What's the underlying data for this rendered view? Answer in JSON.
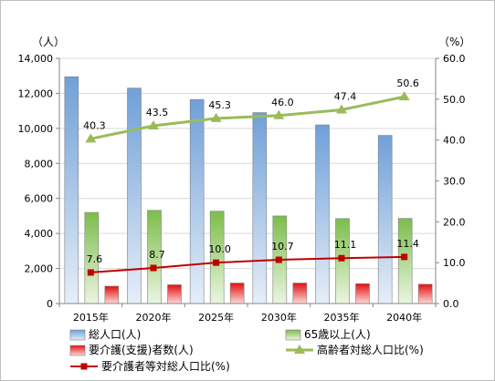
{
  "chart_data": {
    "type": "bar",
    "categories": [
      "2015年",
      "2020年",
      "2025年",
      "2030年",
      "2035年",
      "2040年"
    ],
    "left_axis": {
      "unit_label": "（人）",
      "range": [
        0,
        14000
      ],
      "ticks": [
        "0",
        "2,000",
        "4,000",
        "6,000",
        "8,000",
        "10,000",
        "12,000",
        "14,000"
      ]
    },
    "right_axis": {
      "unit_label": "（%）",
      "range": [
        0,
        60
      ],
      "ticks": [
        "0.0",
        "10.0",
        "20.0",
        "30.0",
        "40.0",
        "50.0",
        "60.0"
      ]
    },
    "grid": true,
    "legend_position": "bottom",
    "series": [
      {
        "name": "総人口(人)",
        "kind": "bar",
        "axis": "left",
        "color": "#9dc3e6",
        "values": [
          12950,
          12300,
          11650,
          10900,
          10200,
          9600
        ]
      },
      {
        "name": "65歳以上(人)",
        "kind": "bar",
        "axis": "left",
        "color": "#92d050",
        "values": [
          5200,
          5320,
          5270,
          5000,
          4850,
          4860
        ]
      },
      {
        "name": "要介護(支援)者数(人)",
        "kind": "bar",
        "axis": "left",
        "color": "#ff0000",
        "values": [
          990,
          1070,
          1170,
          1170,
          1130,
          1100
        ]
      },
      {
        "name": "高齢者対総人口比(%)",
        "kind": "line",
        "axis": "right",
        "color": "#9bbb59",
        "marker": "triangle",
        "values": [
          40.3,
          43.5,
          45.3,
          46.0,
          47.4,
          50.6
        ],
        "labels": [
          "40.3",
          "43.5",
          "45.3",
          "46.0",
          "47.4",
          "50.6"
        ]
      },
      {
        "name": "要介護者等対総人口比(%)",
        "kind": "line",
        "axis": "right",
        "color": "#c00000",
        "marker": "square",
        "values": [
          7.6,
          8.7,
          10.0,
          10.7,
          11.1,
          11.4
        ],
        "labels": [
          "7.6",
          "8.7",
          "10.0",
          "10.7",
          "11.1",
          "11.4"
        ]
      }
    ]
  }
}
